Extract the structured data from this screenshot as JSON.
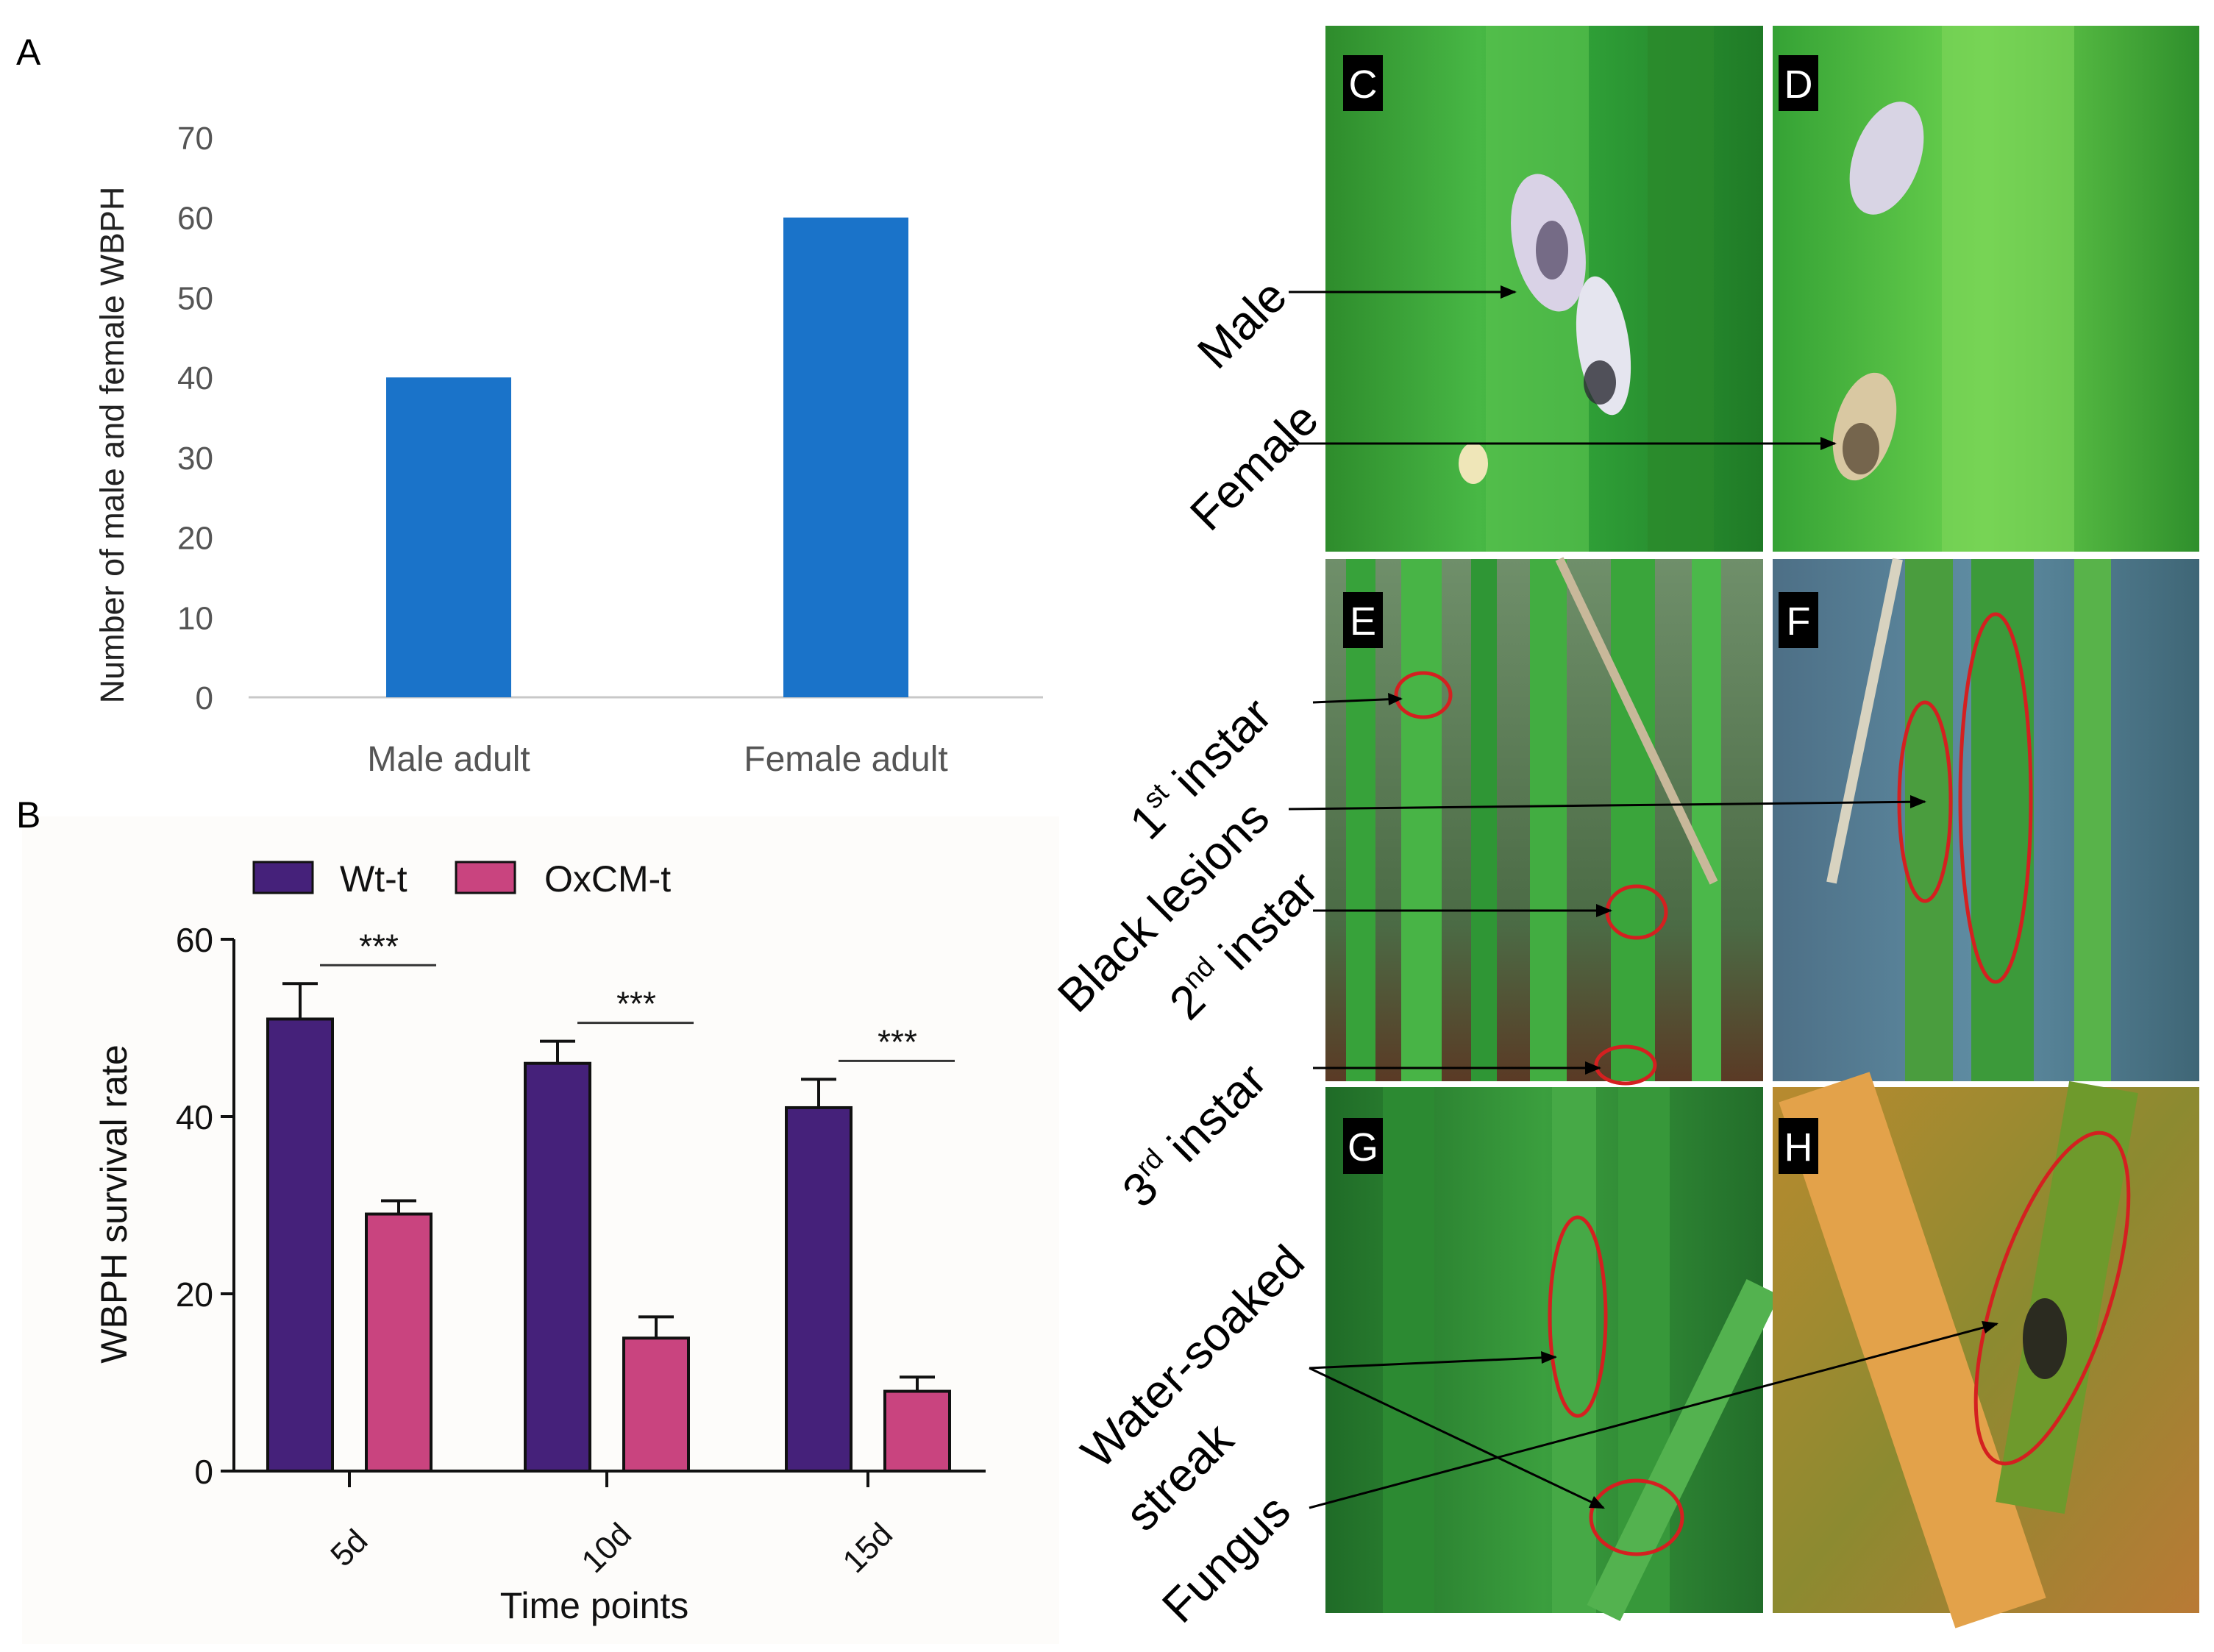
{
  "panels": {
    "A": "A",
    "B": "B",
    "C": "C",
    "D": "D",
    "E": "E",
    "F": "F",
    "G": "G",
    "H": "H"
  },
  "chart_data": [
    {
      "panel": "A",
      "type": "bar",
      "categories": [
        "Male adult",
        "Female adult"
      ],
      "values": [
        40,
        60
      ],
      "title": "",
      "xlabel": "",
      "ylabel": "Number of male and female WBPH",
      "ylim": [
        0,
        70
      ],
      "yticks": [
        "0",
        "10",
        "20",
        "30",
        "40",
        "50",
        "60",
        "70"
      ],
      "color": "#1a73c9",
      "grid": false
    },
    {
      "panel": "B",
      "type": "bar",
      "categories": [
        "5d",
        "10d",
        "15d"
      ],
      "series": [
        {
          "name": "Wt-t",
          "values": [
            51,
            46,
            41
          ],
          "errors": [
            4,
            2.5,
            3.2
          ],
          "color": "#45217a"
        },
        {
          "name": "OxCM-t",
          "values": [
            29,
            15,
            9
          ],
          "errors": [
            1.5,
            2.4,
            1.6
          ],
          "color": "#c9447f"
        }
      ],
      "significance": [
        "***",
        "***",
        "***"
      ],
      "xlabel": "Time points",
      "ylabel": "WBPH survival rate",
      "ylim": [
        0,
        60
      ],
      "yticks": [
        "0",
        "20",
        "40",
        "60"
      ],
      "legend_position": "top",
      "grid": false
    }
  ],
  "photo_annotations": {
    "male": "Male",
    "female": "Female",
    "first_instar": {
      "num": "1",
      "sup": "st",
      "word": " instar"
    },
    "black_lesions": "Black lesions",
    "second_instar": {
      "num": "2",
      "sup": "nd",
      "word": " instar"
    },
    "third_instar": {
      "num": "3",
      "sup": "rd",
      "word": " instar"
    },
    "water_soaked_1": "Water-soaked",
    "water_soaked_2": "streak",
    "fungus": "Fungus"
  },
  "colors": {
    "leaf_green": "#2fa83a",
    "annotation_circle": "#d42020",
    "label_box": "#000000"
  }
}
